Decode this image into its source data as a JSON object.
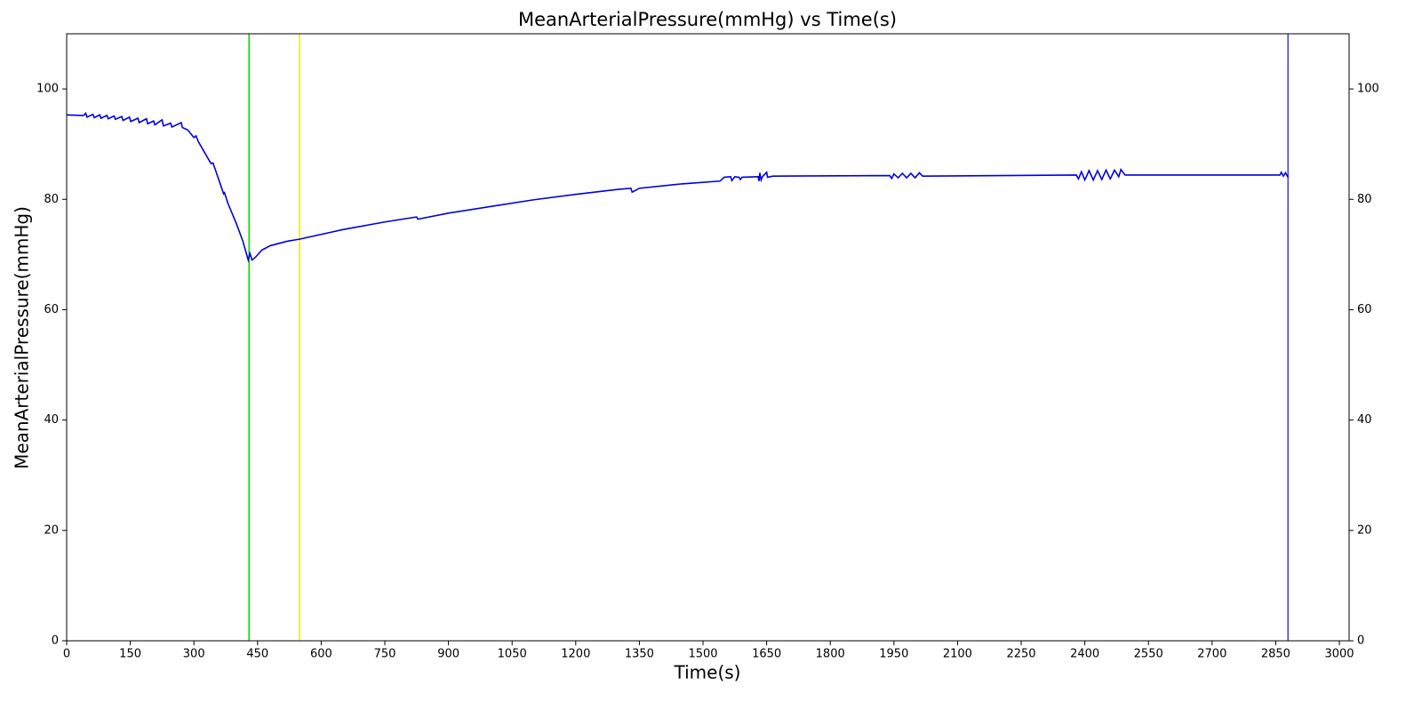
{
  "chart_data": {
    "type": "line",
    "title": "MeanArterialPressure(mmHg) vs Time(s)",
    "x_label": "Time(s)",
    "y_label": "MeanArterialPressure(mmHg)",
    "x": [
      0,
      40,
      45,
      48,
      62,
      65,
      78,
      81,
      95,
      98,
      112,
      115,
      130,
      133,
      148,
      151,
      168,
      171,
      188,
      191,
      205,
      208,
      225,
      228,
      245,
      248,
      270,
      273,
      285,
      300,
      305,
      310,
      340,
      345,
      370,
      372,
      380,
      400,
      415,
      428,
      432,
      437,
      445,
      460,
      480,
      520,
      550,
      650,
      750,
      825,
      828,
      900,
      1000,
      1100,
      1200,
      1300,
      1330,
      1333,
      1350,
      1450,
      1540,
      1550,
      1565,
      1568,
      1575,
      1585,
      1588,
      1592,
      1630,
      1632,
      1634,
      1637,
      1640,
      1650,
      1652,
      1665,
      1940,
      1945,
      1950,
      1960,
      1970,
      1980,
      1990,
      2000,
      2010,
      2018,
      2380,
      2385,
      2392,
      2400,
      2410,
      2420,
      2430,
      2440,
      2450,
      2460,
      2470,
      2480,
      2485,
      2495,
      2860,
      2863,
      2868,
      2873,
      2879
    ],
    "series": [
      {
        "color": "#0000dd",
        "values": [
          95.3,
          95.2,
          95.6,
          94.9,
          95.4,
          94.8,
          95.3,
          94.7,
          95.2,
          94.6,
          95.1,
          94.5,
          95.0,
          94.3,
          94.9,
          94.1,
          94.7,
          93.9,
          94.6,
          93.7,
          94.2,
          93.5,
          94.4,
          93.3,
          93.8,
          93.1,
          93.9,
          93.0,
          92.6,
          91.2,
          91.5,
          90.5,
          86.5,
          86.6,
          81.0,
          81.2,
          79.3,
          75.6,
          72.5,
          69.0,
          70.2,
          69.0,
          69.5,
          70.8,
          71.6,
          72.4,
          72.8,
          74.5,
          75.9,
          76.8,
          76.4,
          77.5,
          78.7,
          79.9,
          80.9,
          81.8,
          82.0,
          81.3,
          82.0,
          82.8,
          83.3,
          84.0,
          84.1,
          83.4,
          84.1,
          84.0,
          83.6,
          84.0,
          84.1,
          83.3,
          84.8,
          83.5,
          84.1,
          84.9,
          84.0,
          84.2,
          84.3,
          83.8,
          84.6,
          83.9,
          84.7,
          83.9,
          84.7,
          83.9,
          84.8,
          84.2,
          84.4,
          83.7,
          85.0,
          83.5,
          85.2,
          83.5,
          85.2,
          83.6,
          85.3,
          83.7,
          85.3,
          84.1,
          85.4,
          84.4,
          84.4,
          84.9,
          84.2,
          84.8,
          84.0
        ]
      }
    ],
    "vlines": [
      {
        "x": 430,
        "color": "#00dd00"
      },
      {
        "x": 549,
        "color": "#eeee00"
      },
      {
        "x": 2879,
        "color": "#4444dd"
      }
    ],
    "xlim": [
      0,
      3023
    ],
    "ylim": [
      0,
      110
    ],
    "xticks": [
      0,
      150,
      300,
      450,
      600,
      750,
      900,
      1050,
      1200,
      1350,
      1500,
      1650,
      1800,
      1950,
      2100,
      2250,
      2400,
      2550,
      2700,
      2850,
      3000
    ],
    "yticks": [
      0,
      20,
      40,
      60,
      80,
      100
    ]
  }
}
